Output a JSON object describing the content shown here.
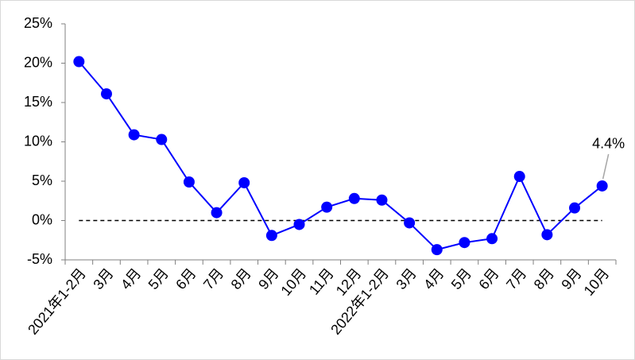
{
  "chart_data": {
    "type": "line",
    "categories": [
      "2021年1-2月",
      "3月",
      "4月",
      "5月",
      "6月",
      "7月",
      "8月",
      "9月",
      "10月",
      "11月",
      "12月",
      "2022年1-2月",
      "3月",
      "4月",
      "5月",
      "6月",
      "7月",
      "8月",
      "9月",
      "10月"
    ],
    "series": [
      {
        "color": "#0000ff",
        "values": [
          20.2,
          16.1,
          10.9,
          10.3,
          4.9,
          1.0,
          4.8,
          -1.9,
          -0.5,
          1.7,
          2.8,
          2.6,
          -0.3,
          -3.7,
          -2.8,
          -2.3,
          5.6,
          -1.8,
          1.6,
          4.4
        ],
        "value_labels": [
          null,
          null,
          null,
          null,
          null,
          null,
          null,
          null,
          null,
          null,
          null,
          null,
          null,
          null,
          null,
          null,
          null,
          null,
          null,
          "4.4%"
        ]
      }
    ],
    "ylim": [
      -5,
      25
    ],
    "yticks": [
      {
        "value": -5,
        "label": "-5%"
      },
      {
        "value": 0,
        "label": "0%"
      },
      {
        "value": 5,
        "label": "5%"
      },
      {
        "value": 10,
        "label": "10%"
      },
      {
        "value": 15,
        "label": "15%"
      },
      {
        "value": 20,
        "label": "20%"
      },
      {
        "value": 25,
        "label": "25%"
      }
    ],
    "zero_line": true
  }
}
